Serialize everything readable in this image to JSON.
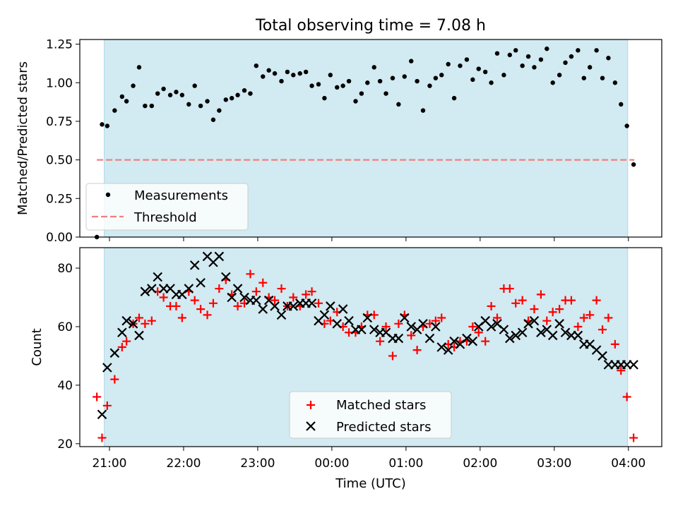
{
  "figure": {
    "title": "Total observing time = 7.08 h",
    "xlabel": "Time (UTC)",
    "background": "#ffffff",
    "shade_color": "#add8e6",
    "x_ticks": [
      "21:00",
      "22:00",
      "23:00",
      "00:00",
      "01:00",
      "02:00",
      "03:00",
      "04:00"
    ]
  },
  "chart_data": [
    {
      "type": "scatter",
      "name": "ratio-panel",
      "ylabel": "Matched/Predicted stars",
      "xlim": [
        20.6,
        28.45
      ],
      "ylim": [
        0,
        1.28
      ],
      "x_unit": "hours since 20:00 UTC",
      "y_ticks": [
        "0.00",
        "0.25",
        "0.50",
        "0.75",
        "1.00",
        "1.25"
      ],
      "y_tick_values": [
        0,
        0.25,
        0.5,
        0.75,
        1.0,
        1.25
      ],
      "shaded_span": [
        20.93,
        27.99
      ],
      "threshold": {
        "label": "Threshold",
        "value": 0.5,
        "x_range": [
          20.83,
          28.08
        ],
        "color": "#f08080",
        "style": "dashed"
      },
      "legend": {
        "position": "lower left",
        "entries": [
          "Measurements",
          "Threshold"
        ]
      },
      "series": [
        {
          "name": "Measurements",
          "color": "#000000",
          "marker": "dot",
          "x": [
            20.83,
            20.9,
            20.97,
            21.07,
            21.17,
            21.23,
            21.32,
            21.4,
            21.48,
            21.57,
            21.65,
            21.73,
            21.82,
            21.9,
            21.98,
            22.07,
            22.15,
            22.23,
            22.32,
            22.4,
            22.48,
            22.57,
            22.65,
            22.73,
            22.82,
            22.9,
            22.98,
            23.07,
            23.15,
            23.23,
            23.32,
            23.4,
            23.48,
            23.57,
            23.65,
            23.73,
            23.82,
            23.9,
            23.98,
            24.07,
            24.15,
            24.23,
            24.32,
            24.4,
            24.48,
            24.57,
            24.65,
            24.73,
            24.82,
            24.9,
            24.98,
            25.07,
            25.15,
            25.23,
            25.32,
            25.4,
            25.48,
            25.57,
            25.65,
            25.73,
            25.82,
            25.9,
            25.98,
            26.07,
            26.15,
            26.23,
            26.32,
            26.4,
            26.48,
            26.57,
            26.65,
            26.73,
            26.82,
            26.9,
            26.98,
            27.07,
            27.15,
            27.23,
            27.32,
            27.4,
            27.48,
            27.57,
            27.65,
            27.73,
            27.82,
            27.9,
            27.98,
            28.07
          ],
          "y": [
            0.0,
            0.73,
            0.72,
            0.82,
            0.91,
            0.88,
            0.98,
            1.1,
            0.85,
            0.85,
            0.93,
            0.96,
            0.92,
            0.94,
            0.92,
            0.86,
            0.98,
            0.85,
            0.88,
            0.76,
            0.82,
            0.89,
            0.9,
            0.92,
            0.95,
            0.93,
            1.11,
            1.04,
            1.08,
            1.06,
            1.01,
            1.07,
            1.05,
            1.06,
            1.07,
            0.98,
            0.99,
            0.9,
            1.05,
            0.97,
            0.98,
            1.01,
            0.88,
            0.93,
            1.0,
            1.1,
            1.01,
            0.93,
            1.03,
            0.86,
            1.04,
            1.14,
            1.01,
            0.82,
            0.98,
            1.03,
            1.05,
            1.12,
            0.9,
            1.11,
            1.15,
            1.02,
            1.09,
            1.07,
            1.0,
            1.19,
            1.05,
            1.18,
            1.21,
            1.11,
            1.17,
            1.1,
            1.15,
            1.22,
            1.0,
            1.05,
            1.13,
            1.17,
            1.21,
            1.03,
            1.1,
            1.21,
            1.03,
            1.16,
            1.0,
            0.86,
            0.72,
            0.47
          ]
        }
      ]
    },
    {
      "type": "scatter",
      "name": "count-panel",
      "ylabel": "Count",
      "xlabel": "Time (UTC)",
      "xlim": [
        20.6,
        28.45
      ],
      "ylim": [
        19,
        87
      ],
      "x_unit": "hours since 20:00 UTC",
      "x_ticks": [
        "21:00",
        "22:00",
        "23:00",
        "00:00",
        "01:00",
        "02:00",
        "03:00",
        "04:00"
      ],
      "x_tick_values": [
        21,
        22,
        23,
        24,
        25,
        26,
        27,
        28
      ],
      "y_ticks": [
        "20",
        "40",
        "60",
        "80"
      ],
      "y_tick_values": [
        20,
        40,
        60,
        80
      ],
      "shaded_span": [
        20.93,
        27.99
      ],
      "legend": {
        "position": "lower center",
        "entries": [
          "Matched stars",
          "Predicted stars"
        ]
      },
      "series": [
        {
          "name": "Matched stars",
          "color": "#ff0000",
          "marker": "plus",
          "x": [
            20.83,
            20.9,
            20.97,
            21.07,
            21.17,
            21.23,
            21.32,
            21.4,
            21.48,
            21.57,
            21.65,
            21.73,
            21.82,
            21.9,
            21.98,
            22.07,
            22.15,
            22.23,
            22.32,
            22.4,
            22.48,
            22.57,
            22.65,
            22.73,
            22.82,
            22.9,
            22.98,
            23.07,
            23.15,
            23.23,
            23.32,
            23.4,
            23.48,
            23.57,
            23.65,
            23.73,
            23.82,
            23.9,
            23.98,
            24.07,
            24.15,
            24.23,
            24.32,
            24.4,
            24.48,
            24.57,
            24.65,
            24.73,
            24.82,
            24.9,
            24.98,
            25.07,
            25.15,
            25.23,
            25.32,
            25.4,
            25.48,
            25.57,
            25.65,
            25.73,
            25.82,
            25.9,
            25.98,
            26.07,
            26.15,
            26.23,
            26.32,
            26.4,
            26.48,
            26.57,
            26.65,
            26.73,
            26.82,
            26.9,
            26.98,
            27.07,
            27.15,
            27.23,
            27.32,
            27.4,
            27.48,
            27.57,
            27.65,
            27.73,
            27.82,
            27.9,
            27.98,
            28.07
          ],
          "y": [
            36,
            22,
            33,
            42,
            53,
            55,
            61,
            63,
            61,
            62,
            72,
            70,
            67,
            67,
            63,
            72,
            69,
            66,
            64,
            68,
            73,
            76,
            71,
            67,
            68,
            78,
            72,
            75,
            70,
            69,
            73,
            67,
            70,
            67,
            71,
            72,
            68,
            61,
            62,
            65,
            60,
            58,
            58,
            60,
            64,
            64,
            55,
            60,
            50,
            61,
            64,
            57,
            52,
            60,
            61,
            62,
            63,
            54,
            53,
            55,
            55,
            60,
            58,
            55,
            67,
            63,
            73,
            73,
            68,
            69,
            62,
            66,
            71,
            62,
            65,
            66,
            69,
            69,
            60,
            63,
            64,
            69,
            59,
            63,
            54,
            45,
            36,
            22
          ]
        },
        {
          "name": "Predicted stars",
          "color": "#000000",
          "marker": "x",
          "x": [
            20.9,
            20.97,
            21.07,
            21.17,
            21.23,
            21.32,
            21.4,
            21.48,
            21.57,
            21.65,
            21.73,
            21.82,
            21.9,
            21.98,
            22.07,
            22.15,
            22.23,
            22.32,
            22.4,
            22.48,
            22.57,
            22.65,
            22.73,
            22.82,
            22.9,
            22.98,
            23.07,
            23.15,
            23.23,
            23.32,
            23.4,
            23.48,
            23.57,
            23.65,
            23.73,
            23.82,
            23.9,
            23.98,
            24.07,
            24.15,
            24.23,
            24.32,
            24.4,
            24.48,
            24.57,
            24.65,
            24.73,
            24.82,
            24.9,
            24.98,
            25.07,
            25.15,
            25.23,
            25.32,
            25.4,
            25.48,
            25.57,
            25.65,
            25.73,
            25.82,
            25.9,
            25.98,
            26.07,
            26.15,
            26.23,
            26.32,
            26.4,
            26.48,
            26.57,
            26.65,
            26.73,
            26.82,
            26.9,
            26.98,
            27.07,
            27.15,
            27.23,
            27.32,
            27.4,
            27.48,
            27.57,
            27.65,
            27.73,
            27.82,
            27.9,
            27.98,
            28.07
          ],
          "y": [
            30,
            46,
            51,
            58,
            62,
            61,
            57,
            72,
            73,
            77,
            73,
            73,
            71,
            71,
            73,
            81,
            75,
            84,
            82,
            84,
            77,
            70,
            73,
            70,
            69,
            69,
            66,
            69,
            67,
            64,
            67,
            67,
            68,
            68,
            68,
            62,
            64,
            67,
            61,
            66,
            62,
            59,
            59,
            63,
            59,
            58,
            58,
            56,
            56,
            63,
            60,
            59,
            61,
            56,
            60,
            53,
            52,
            55,
            54,
            56,
            55,
            60,
            62,
            60,
            61,
            59,
            56,
            57,
            58,
            61,
            62,
            58,
            59,
            57,
            61,
            58,
            57,
            57,
            54,
            54,
            52,
            50,
            47,
            47,
            47,
            47,
            47
          ]
        }
      ]
    }
  ]
}
